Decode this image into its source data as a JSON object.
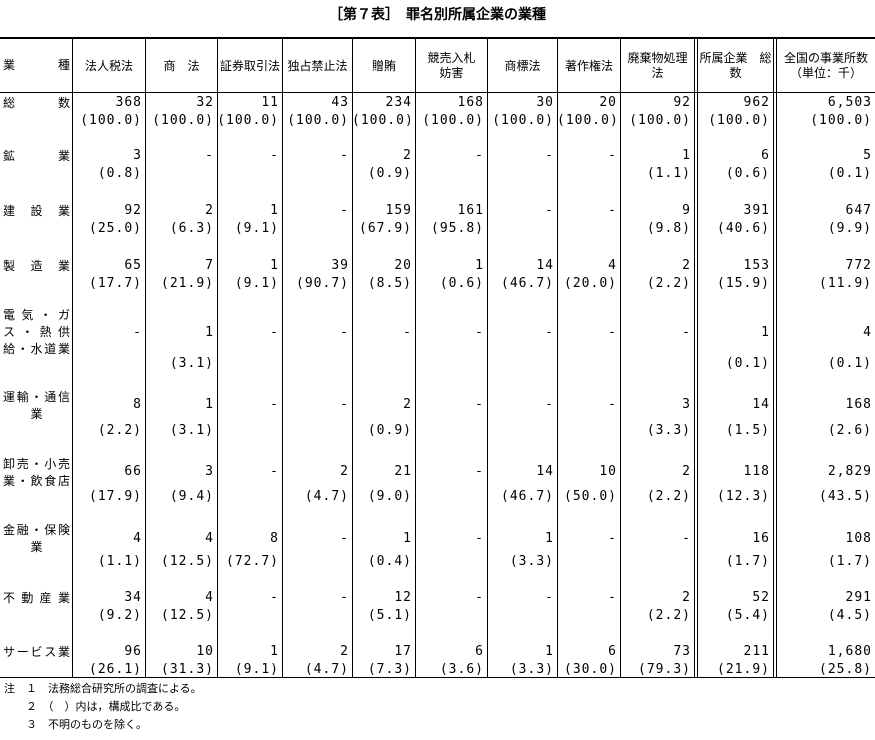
{
  "title": "［第７表］　罪名別所属企業の業種",
  "header": {
    "row_label": [
      "業",
      "種"
    ],
    "columns": [
      [
        "法人税法"
      ],
      [
        "商　法"
      ],
      [
        "証券取引法"
      ],
      [
        "独占禁止法"
      ],
      [
        "贈賄"
      ],
      [
        "競売入札",
        "妨害"
      ],
      [
        "商標法"
      ],
      [
        "著作権法"
      ],
      [
        "廃棄物処理",
        "法"
      ],
      [
        "所属企業　総",
        "数"
      ],
      [
        "全国の事業所数",
        "（単位：千）"
      ]
    ]
  },
  "rows": [
    {
      "label": [
        "総数"
      ],
      "values": [
        "368",
        "32",
        "11",
        "43",
        "234",
        "168",
        "30",
        "20",
        "92",
        "962",
        "6,503"
      ],
      "pcts": [
        "(100.0)",
        "(100.0)",
        "(100.0)",
        "(100.0)",
        "(100.0)",
        "(100.0)",
        "(100.0)",
        "(100.0)",
        "(100.0)",
        "(100.0)",
        "(100.0)"
      ]
    },
    {
      "label": [
        "鉱業"
      ],
      "values": [
        "3",
        "-",
        "-",
        "-",
        "2",
        "-",
        "-",
        "-",
        "1",
        "6",
        "5"
      ],
      "pcts": [
        "(0.8)",
        "",
        "",
        "",
        "(0.9)",
        "",
        "",
        "",
        "(1.1)",
        "(0.6)",
        "(0.1)"
      ]
    },
    {
      "label": [
        "建設業"
      ],
      "values": [
        "92",
        "2",
        "1",
        "-",
        "159",
        "161",
        "-",
        "-",
        "9",
        "391",
        "647"
      ],
      "pcts": [
        "(25.0)",
        "(6.3)",
        "(9.1)",
        "",
        "(67.9)",
        "(95.8)",
        "",
        "",
        "(9.8)",
        "(40.6)",
        "(9.9)"
      ]
    },
    {
      "label": [
        "製造業"
      ],
      "values": [
        "65",
        "7",
        "1",
        "39",
        "20",
        "1",
        "14",
        "4",
        "2",
        "153",
        "772"
      ],
      "pcts": [
        "(17.7)",
        "(21.9)",
        "(9.1)",
        "(90.7)",
        "(8.5)",
        "(0.6)",
        "(46.7)",
        "(20.0)",
        "(2.2)",
        "(15.9)",
        "(11.9)"
      ]
    },
    {
      "label": [
        "電気・ガ",
        "ス・熱供",
        "給・水道業"
      ],
      "values": [
        "-",
        "1",
        "-",
        "-",
        "-",
        "-",
        "-",
        "-",
        "-",
        "1",
        "4"
      ],
      "pcts": [
        "",
        "(3.1)",
        "",
        "",
        "",
        "",
        "",
        "",
        "",
        "(0.1)",
        "(0.1)"
      ]
    },
    {
      "label": [
        "運輸・通信",
        "業"
      ],
      "values": [
        "8",
        "1",
        "-",
        "-",
        "2",
        "-",
        "-",
        "-",
        "3",
        "14",
        "168"
      ],
      "pcts": [
        "(2.2)",
        "(3.1)",
        "",
        "",
        "(0.9)",
        "",
        "",
        "",
        "(3.3)",
        "(1.5)",
        "(2.6)"
      ]
    },
    {
      "label": [
        "卸売・小売",
        "業・飲食店"
      ],
      "values": [
        "66",
        "3",
        "-",
        "2",
        "21",
        "-",
        "14",
        "10",
        "2",
        "118",
        "2,829"
      ],
      "pcts": [
        "(17.9)",
        "(9.4)",
        "",
        "(4.7)",
        "(9.0)",
        "",
        "(46.7)",
        "(50.0)",
        "(2.2)",
        "(12.3)",
        "(43.5)"
      ]
    },
    {
      "label": [
        "金融・保険",
        "業"
      ],
      "values": [
        "4",
        "4",
        "8",
        "-",
        "1",
        "-",
        "1",
        "-",
        "-",
        "16",
        "108"
      ],
      "pcts": [
        "(1.1)",
        "(12.5)",
        "(72.7)",
        "",
        "(0.4)",
        "",
        "(3.3)",
        "",
        "",
        "(1.7)",
        "(1.7)"
      ]
    },
    {
      "label": [
        "不動産業"
      ],
      "values": [
        "34",
        "4",
        "-",
        "-",
        "12",
        "-",
        "-",
        "-",
        "2",
        "52",
        "291"
      ],
      "pcts": [
        "(9.2)",
        "(12.5)",
        "",
        "",
        "(5.1)",
        "",
        "",
        "",
        "(2.2)",
        "(5.4)",
        "(4.5)"
      ]
    },
    {
      "label": [
        "サービス業"
      ],
      "values": [
        "96",
        "10",
        "1",
        "2",
        "17",
        "6",
        "1",
        "6",
        "73",
        "211",
        "1,680"
      ],
      "pcts": [
        "(26.1)",
        "(31.3)",
        "(9.1)",
        "(4.7)",
        "(7.3)",
        "(3.6)",
        "(3.3)",
        "(30.0)",
        "(79.3)",
        "(21.9)",
        "(25.8)"
      ]
    }
  ],
  "notes": [
    "注　１　法務総合研究所の調査による。",
    "　　２　（　）内は，構成比である。",
    "　　３　不明のものを除く。"
  ]
}
